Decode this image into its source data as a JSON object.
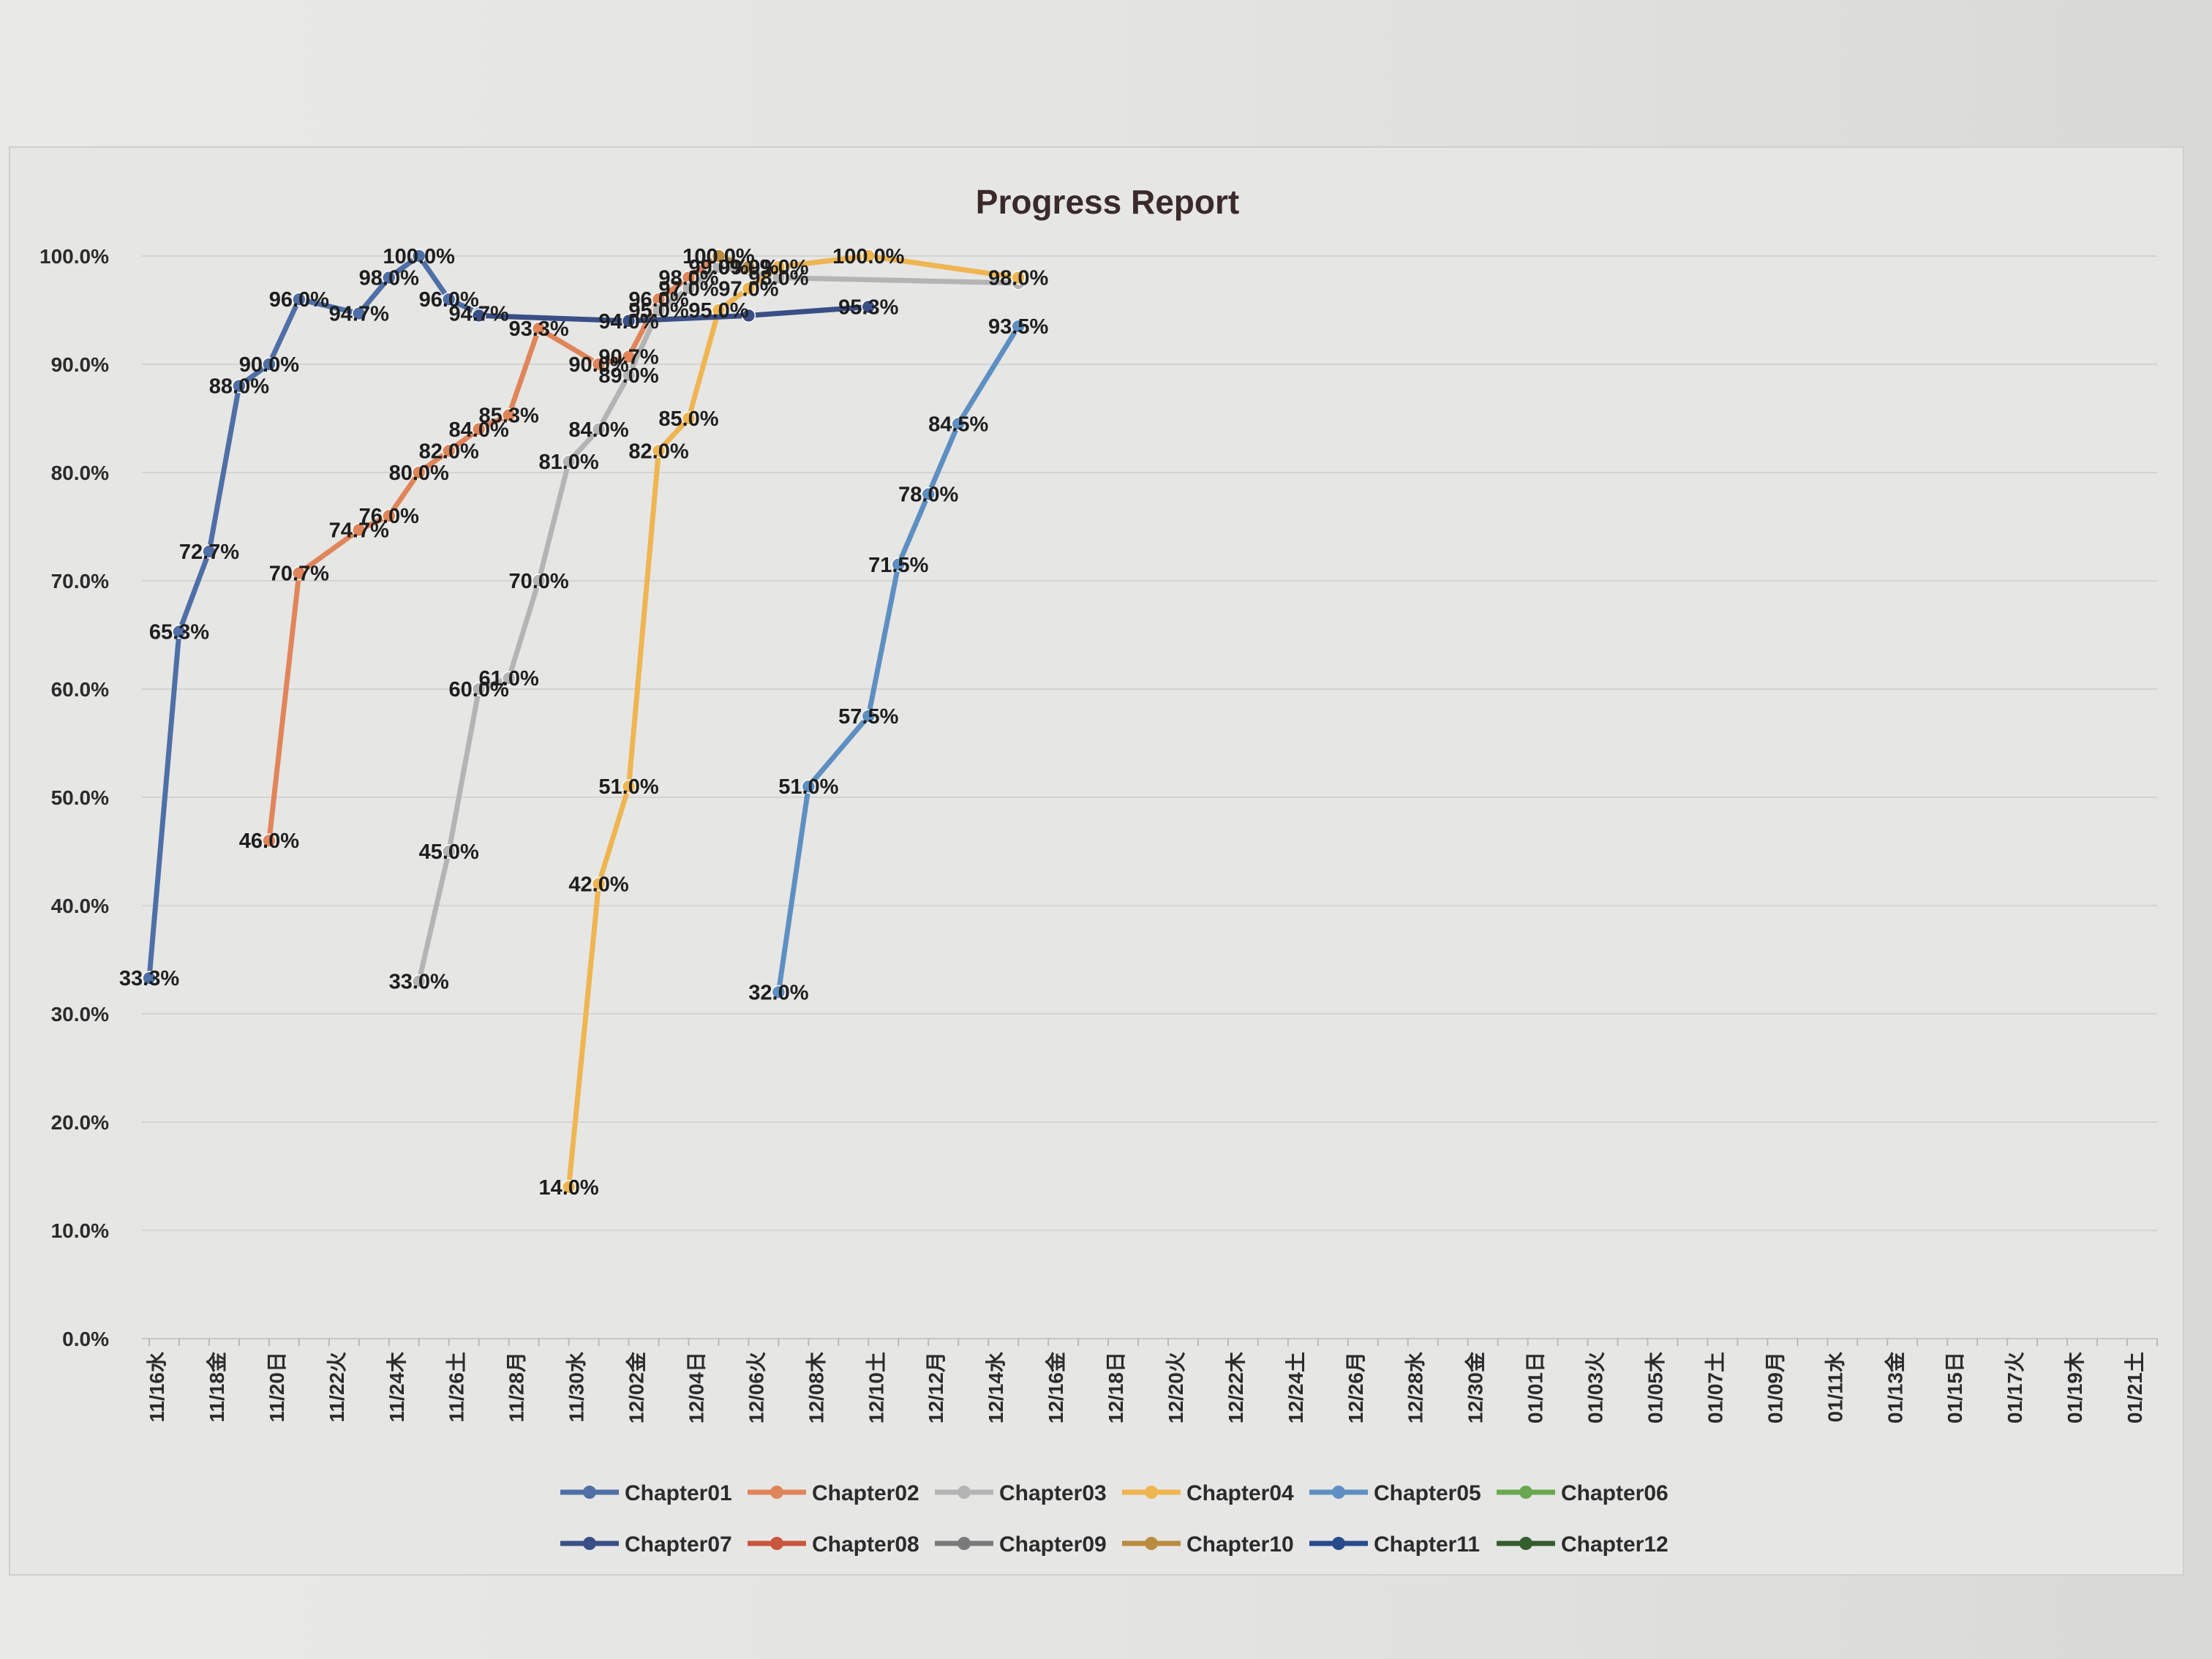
{
  "chart_data": {
    "type": "line",
    "title": "Progress Report",
    "xlabel": "",
    "ylabel": "",
    "ylim": [
      0,
      100
    ],
    "y_ticks": [
      "0.0%",
      "10.0%",
      "20.0%",
      "30.0%",
      "40.0%",
      "50.0%",
      "60.0%",
      "70.0%",
      "80.0%",
      "90.0%",
      "100.0%"
    ],
    "grid": "horizontal",
    "legend_position": "bottom",
    "x_tick_labels": [
      "11/16水",
      "11/18金",
      "11/20日",
      "11/22火",
      "11/24木",
      "11/26土",
      "11/28月",
      "11/30水",
      "12/02金",
      "12/04日",
      "12/06火",
      "12/08木",
      "12/10土",
      "12/12月",
      "12/14水",
      "12/16金",
      "12/18日",
      "12/20火",
      "12/22木",
      "12/24土",
      "12/26月",
      "12/28水",
      "12/30金",
      "01/01日",
      "01/03火",
      "01/05木",
      "01/07土",
      "01/09月",
      "01/11水",
      "01/13金",
      "01/15日",
      "01/17火",
      "01/19木",
      "01/21土"
    ],
    "x_start": "2022-11-16",
    "x_end": "2023-01-22",
    "series": [
      {
        "name": "Chapter01",
        "color": "#4f6fa6",
        "points": [
          {
            "x": "2022-11-16",
            "y": 33.3,
            "label": "33.3%"
          },
          {
            "x": "2022-11-17",
            "y": 65.3,
            "label": "65.3%"
          },
          {
            "x": "2022-11-18",
            "y": 72.7,
            "label": "72.7%"
          },
          {
            "x": "2022-11-19",
            "y": 88.0,
            "label": "88.0%"
          },
          {
            "x": "2022-11-20",
            "y": 90.0,
            "label": "90.0%"
          },
          {
            "x": "2022-11-21",
            "y": 96.0,
            "label": "96.0%"
          },
          {
            "x": "2022-11-23",
            "y": 94.7,
            "label": "94.7%"
          },
          {
            "x": "2022-11-24",
            "y": 98.0,
            "label": "98.0%"
          },
          {
            "x": "2022-11-25",
            "y": 100.0,
            "label": "100.0%"
          },
          {
            "x": "2022-11-26",
            "y": 96.0,
            "label": "96.0%"
          },
          {
            "x": "2022-11-27",
            "y": 94.7,
            "label": "94.7%"
          }
        ]
      },
      {
        "name": "Chapter02",
        "color": "#e0855a",
        "points": [
          {
            "x": "2022-11-20",
            "y": 46.0,
            "label": "46.0%"
          },
          {
            "x": "2022-11-21",
            "y": 70.7,
            "label": "70.7%"
          },
          {
            "x": "2022-11-23",
            "y": 74.7,
            "label": "74.7%"
          },
          {
            "x": "2022-11-24",
            "y": 76.0,
            "label": "76.0%"
          },
          {
            "x": "2022-11-25",
            "y": 80.0,
            "label": "80.0%"
          },
          {
            "x": "2022-11-26",
            "y": 82.0,
            "label": "82.0%"
          },
          {
            "x": "2022-11-27",
            "y": 84.0,
            "label": "84.0%"
          },
          {
            "x": "2022-11-28",
            "y": 85.3,
            "label": "85.3%"
          },
          {
            "x": "2022-11-29",
            "y": 93.3,
            "label": "93.3%"
          },
          {
            "x": "2022-12-01",
            "y": 90.0,
            "label": "90.0%"
          },
          {
            "x": "2022-12-02",
            "y": 90.7,
            "label": "90.7%"
          },
          {
            "x": "2022-12-03",
            "y": 96.0,
            "label": "96.0%"
          },
          {
            "x": "2022-12-04",
            "y": 98.0,
            "label": "98.0%"
          },
          {
            "x": "2022-12-05",
            "y": 100.0,
            "label": "100.0%"
          }
        ]
      },
      {
        "name": "Chapter03",
        "color": "#b4b4b4",
        "points": [
          {
            "x": "2022-11-25",
            "y": 33.0,
            "label": "33.0%"
          },
          {
            "x": "2022-11-26",
            "y": 45.0,
            "label": "45.0%"
          },
          {
            "x": "2022-11-27",
            "y": 60.0,
            "label": "60.0%"
          },
          {
            "x": "2022-11-28",
            "y": 61.0,
            "label": "61.0%"
          },
          {
            "x": "2022-11-29",
            "y": 70.0,
            "label": "70.0%"
          },
          {
            "x": "2022-11-30",
            "y": 81.0,
            "label": "81.0%"
          },
          {
            "x": "2022-12-01",
            "y": 84.0,
            "label": "84.0%"
          },
          {
            "x": "2022-12-02",
            "y": 89.0,
            "label": "89.0%"
          },
          {
            "x": "2022-12-03",
            "y": 95.0,
            "label": "95.0%"
          },
          {
            "x": "2022-12-04",
            "y": 97.0,
            "label": "97.0%"
          },
          {
            "x": "2022-12-05",
            "y": 99.0,
            "label": "99.0%"
          },
          {
            "x": "2022-12-07",
            "y": 98.0,
            "label": "98.0%"
          },
          {
            "x": "2022-12-15",
            "y": 97.5,
            "label": ""
          }
        ]
      },
      {
        "name": "Chapter04",
        "color": "#efb551",
        "points": [
          {
            "x": "2022-11-30",
            "y": 14.0,
            "label": "14.0%"
          },
          {
            "x": "2022-12-01",
            "y": 42.0,
            "label": "42.0%"
          },
          {
            "x": "2022-12-02",
            "y": 51.0,
            "label": "51.0%"
          },
          {
            "x": "2022-12-03",
            "y": 82.0,
            "label": "82.0%"
          },
          {
            "x": "2022-12-04",
            "y": 85.0,
            "label": "85.0%"
          },
          {
            "x": "2022-12-05",
            "y": 95.0,
            "label": "95.0%"
          },
          {
            "x": "2022-12-06",
            "y": 97.0,
            "label": "97.0%"
          },
          {
            "x": "2022-12-07",
            "y": 99.0,
            "label": "99.0%"
          },
          {
            "x": "2022-12-10",
            "y": 100.0,
            "label": "100.0%"
          },
          {
            "x": "2022-12-15",
            "y": 98.0,
            "label": "98.0%"
          }
        ]
      },
      {
        "name": "Chapter05",
        "color": "#5e8fc2",
        "points": [
          {
            "x": "2022-12-07",
            "y": 32.0,
            "label": "32.0%"
          },
          {
            "x": "2022-12-08",
            "y": 51.0,
            "label": "51.0%"
          },
          {
            "x": "2022-12-10",
            "y": 57.5,
            "label": "57.5%"
          },
          {
            "x": "2022-12-11",
            "y": 71.5,
            "label": "71.5%"
          },
          {
            "x": "2022-12-12",
            "y": 78.0,
            "label": "78.0%"
          },
          {
            "x": "2022-12-13",
            "y": 84.5,
            "label": "84.5%"
          },
          {
            "x": "2022-12-15",
            "y": 93.5,
            "label": "93.5%"
          }
        ]
      },
      {
        "name": "Chapter06",
        "color": "#6aa84f",
        "points": []
      },
      {
        "name": "Chapter07",
        "color": "#3a4f86",
        "points": [
          {
            "x": "2022-11-27",
            "y": 94.5,
            "label": ""
          },
          {
            "x": "2022-12-02",
            "y": 94.0,
            "label": "94.0%"
          },
          {
            "x": "2022-12-06",
            "y": 94.5,
            "label": ""
          },
          {
            "x": "2022-12-10",
            "y": 95.3,
            "label": "95.3%"
          }
        ]
      },
      {
        "name": "Chapter08",
        "color": "#c9553d",
        "points": []
      },
      {
        "name": "Chapter09",
        "color": "#7a7a7a",
        "points": []
      },
      {
        "name": "Chapter10",
        "color": "#b98c3f",
        "points": [
          {
            "x": "2022-12-05",
            "y": 100.0,
            "label": "100.0%"
          },
          {
            "x": "2022-12-06",
            "y": 99.0,
            "label": "99.0%"
          }
        ]
      },
      {
        "name": "Chapter11",
        "color": "#274a8c",
        "points": []
      },
      {
        "name": "Chapter12",
        "color": "#355e2e",
        "points": []
      }
    ]
  }
}
